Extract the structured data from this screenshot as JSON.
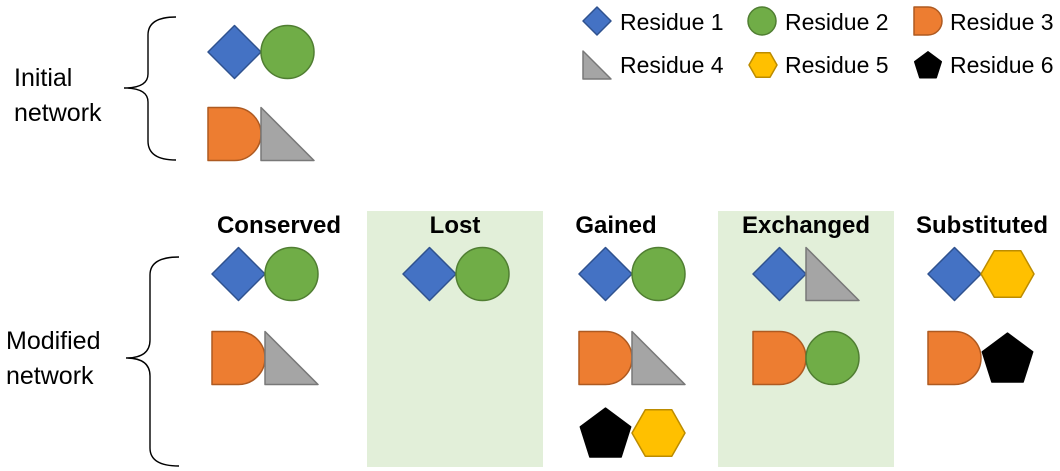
{
  "legend": [
    {
      "shape": "diamond",
      "label": "Residue 1",
      "color": "#4472C4"
    },
    {
      "shape": "circle",
      "label": "Residue 2",
      "color": "#70AD47"
    },
    {
      "shape": "d-shape",
      "label": "Residue 3",
      "color": "#ED7D31"
    },
    {
      "shape": "triangle",
      "label": "Residue 4",
      "color": "#A5A5A5"
    },
    {
      "shape": "hexagon",
      "label": "Residue 5",
      "color": "#FFC000"
    },
    {
      "shape": "pentagon",
      "label": "Residue 6",
      "color": "#000000"
    }
  ],
  "initial_network": {
    "label_line1": "Initial",
    "label_line2": "network",
    "pairs": [
      [
        "diamond",
        "circle"
      ],
      [
        "d-shape",
        "triangle"
      ]
    ]
  },
  "modified_network": {
    "label_line1": "Modified",
    "label_line2": "network"
  },
  "columns": [
    {
      "title": "Conserved",
      "highlight": false,
      "pairs": [
        [
          "diamond",
          "circle"
        ],
        [
          "d-shape",
          "triangle"
        ]
      ]
    },
    {
      "title": "Lost",
      "highlight": true,
      "pairs": [
        [
          "diamond",
          "circle"
        ]
      ]
    },
    {
      "title": "Gained",
      "highlight": false,
      "pairs": [
        [
          "diamond",
          "circle"
        ],
        [
          "d-shape",
          "triangle"
        ],
        [
          "pentagon",
          "hexagon"
        ]
      ]
    },
    {
      "title": "Exchanged",
      "highlight": true,
      "pairs": [
        [
          "diamond",
          "triangle"
        ],
        [
          "d-shape",
          "circle"
        ]
      ]
    },
    {
      "title": "Substituted",
      "highlight": false,
      "pairs": [
        [
          "diamond",
          "hexagon"
        ],
        [
          "d-shape",
          "pentagon"
        ]
      ]
    }
  ],
  "colors": {
    "panel_highlight": "#E2EFD9",
    "diamond_stroke": "#2F528F",
    "circle_stroke": "#507E32",
    "dshape_stroke": "#AE5A21",
    "triangle_stroke": "#787878",
    "hexagon_stroke": "#BC8C00",
    "pentagon_stroke": "#000000"
  }
}
